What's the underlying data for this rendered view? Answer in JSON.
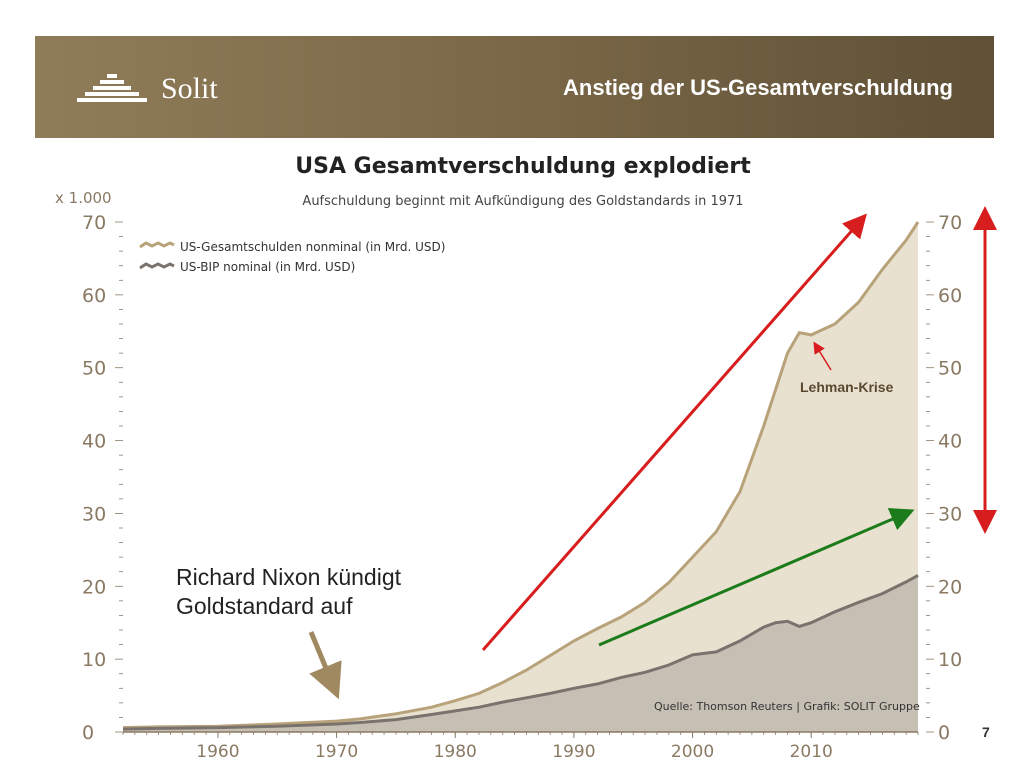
{
  "header": {
    "logo_text": "Solit",
    "title": "Anstieg der US-Gesamtverschuldung"
  },
  "page_number": "7",
  "annotations": {
    "nixon_line1": "Richard Nixon kündigt",
    "nixon_line2": "Goldstandard auf",
    "lehman": "Lehman-Krise",
    "source": "Quelle: Thomson Reuters | Grafik: SOLIT Gruppe"
  },
  "colors": {
    "debt_line": "#b8a27a",
    "debt_fill": "#e9e1d0",
    "gdp_line": "#7a736d",
    "gdp_fill": "#c6bfb4",
    "axis_text": "#8a7a63",
    "red_arrow": "#d71d1d",
    "green_arrow": "#1c7c1c",
    "brown_arrow": "#a08860"
  },
  "chart_data": {
    "type": "area",
    "title": "USA Gesamtverschuldung explodiert",
    "subtitle": "Aufschuldung beginnt mit Aufkündigung des Goldstandards in 1971",
    "unit_label": "x 1.000",
    "xlim": [
      1952,
      2019
    ],
    "ylim": [
      0,
      70
    ],
    "x_ticks": [
      1960,
      1970,
      1980,
      1990,
      2000,
      2010
    ],
    "y_ticks": [
      0,
      10,
      20,
      30,
      40,
      50,
      60,
      70
    ],
    "legend_position": "top-left",
    "series": [
      {
        "name": "US-Gesamtschulden nonminal (in Mrd. USD)",
        "x": [
          1952,
          1955,
          1960,
          1965,
          1970,
          1972,
          1975,
          1978,
          1980,
          1982,
          1984,
          1986,
          1988,
          1990,
          1992,
          1994,
          1996,
          1998,
          2000,
          2002,
          2004,
          2006,
          2007,
          2008,
          2009,
          2010,
          2012,
          2014,
          2016,
          2018,
          2019
        ],
        "y": [
          0.6,
          0.7,
          0.8,
          1.1,
          1.5,
          1.8,
          2.5,
          3.4,
          4.3,
          5.3,
          6.8,
          8.5,
          10.5,
          12.5,
          14.2,
          15.8,
          17.8,
          20.5,
          24.0,
          27.5,
          33.0,
          42.0,
          47.0,
          52.0,
          54.8,
          54.5,
          56.0,
          59.0,
          63.5,
          67.5,
          70.0
        ]
      },
      {
        "name": "US-BIP nominal (in Mrd. USD)",
        "x": [
          1952,
          1955,
          1960,
          1965,
          1970,
          1972,
          1975,
          1978,
          1980,
          1982,
          1984,
          1986,
          1988,
          1990,
          1992,
          1994,
          1996,
          1998,
          2000,
          2002,
          2004,
          2006,
          2007,
          2008,
          2009,
          2010,
          2012,
          2014,
          2016,
          2018,
          2019
        ],
        "y": [
          0.4,
          0.5,
          0.6,
          0.8,
          1.1,
          1.3,
          1.7,
          2.4,
          2.9,
          3.4,
          4.1,
          4.7,
          5.3,
          6.0,
          6.6,
          7.5,
          8.2,
          9.2,
          10.6,
          11.0,
          12.5,
          14.4,
          15.0,
          15.2,
          14.5,
          15.0,
          16.5,
          17.8,
          19.0,
          20.6,
          21.5
        ]
      }
    ]
  }
}
